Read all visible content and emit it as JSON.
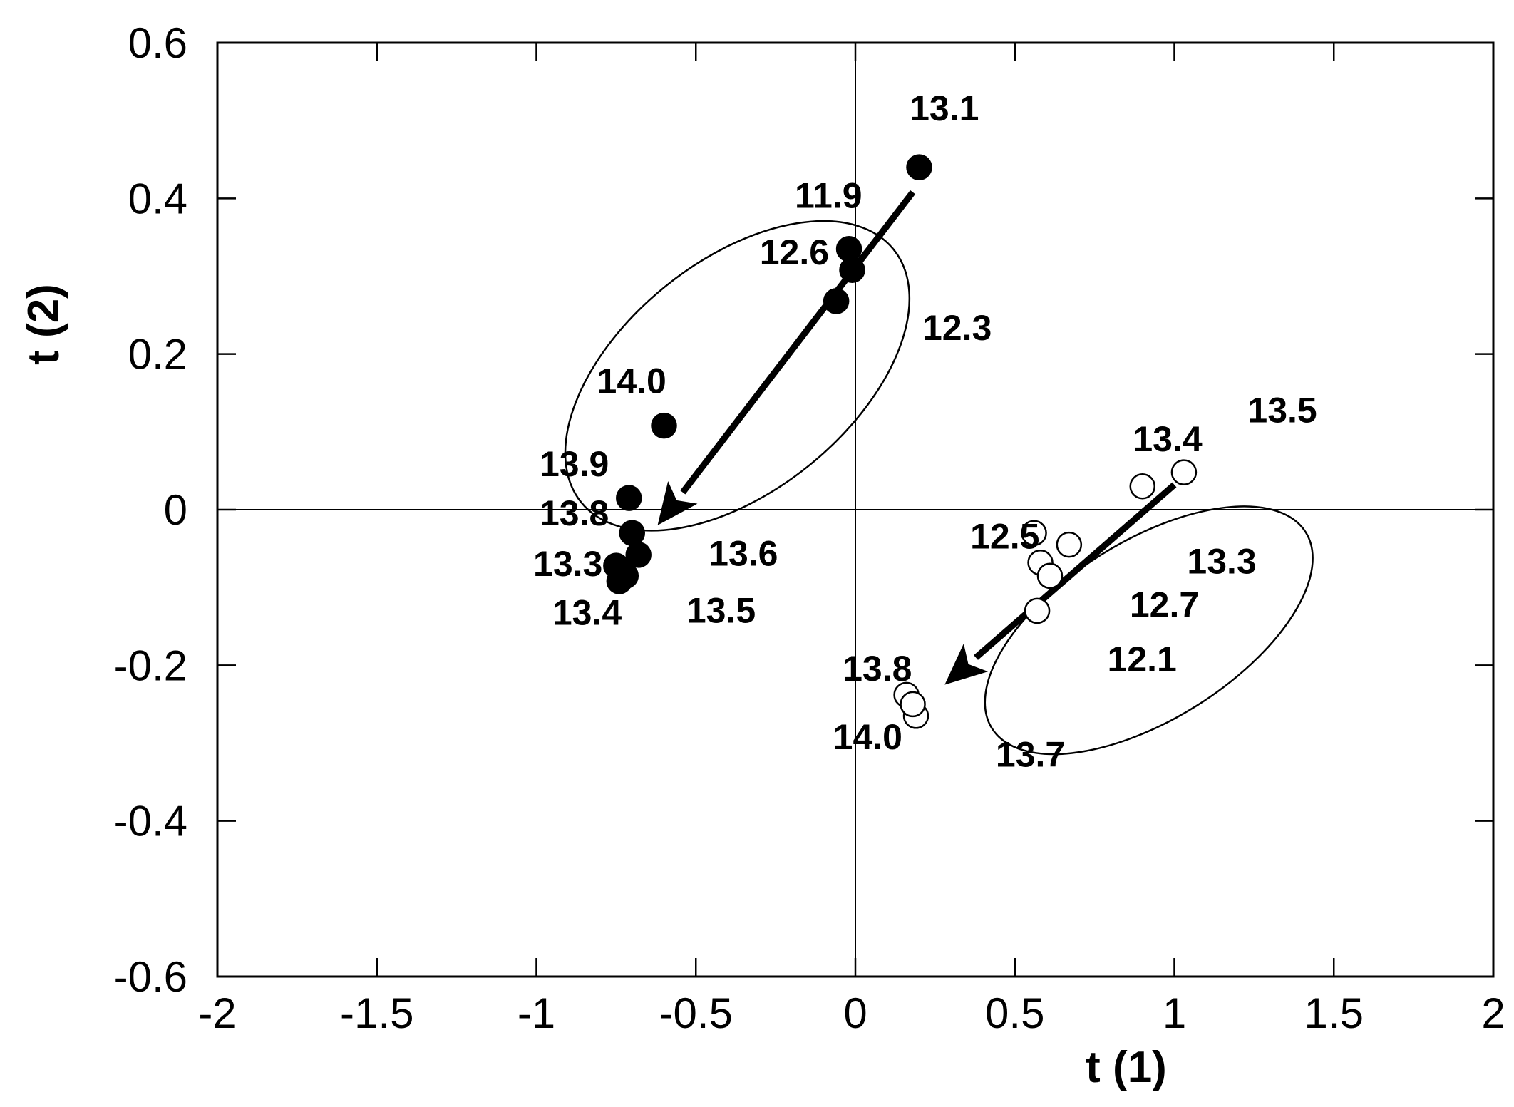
{
  "chart_data": {
    "type": "scatter",
    "title": "",
    "xlabel": "t (1)",
    "ylabel": "t (2)",
    "xlim": [
      -2,
      2
    ],
    "ylim": [
      -0.6,
      0.6
    ],
    "xticks": [
      "-2",
      "-1.5",
      "-1",
      "-0.5",
      "0",
      "0.5",
      "1",
      "1.5",
      "2"
    ],
    "yticks": [
      "0.6",
      "0.4",
      "0.2",
      "0",
      "-0.2",
      "-0.4",
      "-0.6"
    ],
    "grid": false,
    "series": [
      {
        "marker": "filled-circle",
        "points": [
          {
            "x": 0.2,
            "y": 0.44,
            "label": "13.1"
          },
          {
            "x": -0.02,
            "y": 0.335,
            "label": "11.9"
          },
          {
            "x": -0.01,
            "y": 0.308,
            "label": "12.6"
          },
          {
            "x": -0.06,
            "y": 0.268,
            "label": "12.3"
          },
          {
            "x": -0.6,
            "y": 0.108,
            "label": "14.0"
          },
          {
            "x": -0.71,
            "y": 0.015,
            "label": "13.9"
          },
          {
            "x": -0.7,
            "y": -0.03,
            "label": "13.8"
          },
          {
            "x": -0.68,
            "y": -0.058,
            "label": "13.6"
          },
          {
            "x": -0.75,
            "y": -0.072,
            "label": "13.3"
          },
          {
            "x": -0.74,
            "y": -0.092,
            "label": "13.4"
          },
          {
            "x": -0.72,
            "y": -0.085,
            "label": "13.5"
          }
        ],
        "text_labels": [
          {
            "text": "13.1",
            "x": 0.17,
            "y": 0.5
          },
          {
            "text": "11.9",
            "x": -0.19,
            "y": 0.388
          },
          {
            "text": "12.6",
            "x": -0.3,
            "y": 0.315
          },
          {
            "text": "12.3",
            "x": 0.21,
            "y": 0.218
          },
          {
            "text": "14.0",
            "x": -0.81,
            "y": 0.15
          },
          {
            "text": "13.9",
            "x": -0.99,
            "y": 0.043
          },
          {
            "text": "13.8",
            "x": -0.99,
            "y": -0.02
          },
          {
            "text": "13.6",
            "x": -0.46,
            "y": -0.072
          },
          {
            "text": "13.3",
            "x": -1.01,
            "y": -0.085
          },
          {
            "text": "13.4",
            "x": -0.95,
            "y": -0.148
          },
          {
            "text": "13.5",
            "x": -0.53,
            "y": -0.145
          }
        ],
        "arrow": {
          "from": [
            0.18,
            0.408
          ],
          "to": [
            -0.62,
            -0.02
          ]
        },
        "ellipse": {
          "cx": -0.37,
          "cy": 0.172,
          "rx": 0.63,
          "ry": 0.36,
          "angle_deg": 39
        }
      },
      {
        "marker": "open-circle",
        "points": [
          {
            "x": 1.03,
            "y": 0.048,
            "label": "13.5"
          },
          {
            "x": 0.9,
            "y": 0.03,
            "label": "13.4"
          },
          {
            "x": 0.56,
            "y": -0.03,
            "label": "12.5"
          },
          {
            "x": 0.67,
            "y": -0.045,
            "label": "13.3"
          },
          {
            "x": 0.58,
            "y": -0.068,
            "label": "12.7"
          },
          {
            "x": 0.61,
            "y": -0.085,
            "label": ""
          },
          {
            "x": 0.57,
            "y": -0.13,
            "label": "12.1"
          },
          {
            "x": 0.16,
            "y": -0.238,
            "label": "13.8"
          },
          {
            "x": 0.19,
            "y": -0.265,
            "label": "14.0"
          },
          {
            "x": 0.18,
            "y": -0.25,
            "label": "13.7"
          }
        ],
        "text_labels": [
          {
            "text": "13.5",
            "x": 1.23,
            "y": 0.112
          },
          {
            "text": "13.4",
            "x": 0.87,
            "y": 0.075
          },
          {
            "text": "12.5",
            "x": 0.36,
            "y": -0.05
          },
          {
            "text": "13.3",
            "x": 1.04,
            "y": -0.082
          },
          {
            "text": "12.7",
            "x": 0.86,
            "y": -0.138
          },
          {
            "text": "12.1",
            "x": 0.79,
            "y": -0.208
          },
          {
            "text": "13.8",
            "x": -0.04,
            "y": -0.22
          },
          {
            "text": "14.0",
            "x": -0.07,
            "y": -0.308
          },
          {
            "text": "13.7",
            "x": 0.44,
            "y": -0.33
          }
        ],
        "arrow": {
          "from": [
            1.0,
            0.032
          ],
          "to": [
            0.28,
            -0.225
          ]
        },
        "ellipse": {
          "cx": 0.92,
          "cy": -0.155,
          "rx": 0.58,
          "ry": 0.28,
          "angle_deg": 32
        }
      }
    ]
  }
}
